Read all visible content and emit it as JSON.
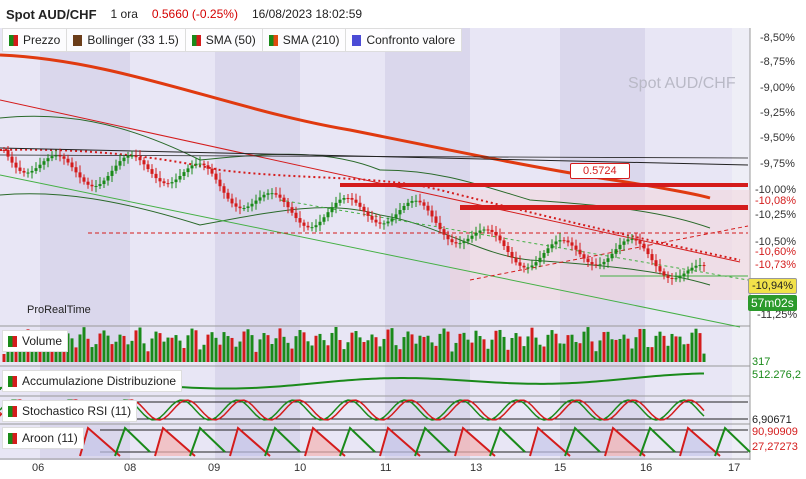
{
  "header": {
    "instrument": "Spot AUD/CHF",
    "timeframe": "1 ora",
    "price": "0.5660",
    "change": "(-0.25%)",
    "datetime": "16/08/2023 18:02:59"
  },
  "legend": [
    {
      "label": "Prezzo",
      "color": "#1a8a1a"
    },
    {
      "label": "Bollinger (33 1.5)",
      "color": "#6b3d1a"
    },
    {
      "label": "SMA (50)",
      "color": "#d41c1c"
    },
    {
      "label": "SMA (210)",
      "color": "#e04a10"
    },
    {
      "label": "Confronto valore",
      "color": "#4b4bd6"
    }
  ],
  "watermark": "Spot AUD/CHF",
  "brand": "ProRealTime",
  "price_axis": {
    "labels": [
      "-8,50%",
      "-8,75%",
      "-9,00%",
      "-9,25%",
      "-9,50%",
      "-9,75%",
      "-10,00%",
      "-10,25%",
      "-10,50%",
      "-10,75%",
      "-11,00%",
      "-11,25%"
    ],
    "tags": {
      "t_1008": "-10,08%",
      "t_1060": "-10,60%",
      "t_1073": "-10,73%",
      "t_1094": "-10,94%",
      "countdown": "57m02s",
      "price_box": "0.5724"
    }
  },
  "panels": {
    "volume": {
      "label": "Volume",
      "value": "317"
    },
    "ad": {
      "label": "Accumulazione Distribuzione",
      "value": "512.276,2"
    },
    "rsi": {
      "label": "Stochastico RSI (11)",
      "value": "6,90671"
    },
    "aroon": {
      "label": "Aroon (11)",
      "value_up": "90,90909",
      "value_down": "27,27273"
    }
  },
  "x_axis": [
    "06",
    "08",
    "09",
    "10",
    "11",
    "13",
    "15",
    "16",
    "17"
  ],
  "colors": {
    "up": "#1a8a1a",
    "down": "#d41c1c",
    "bg_band": "#e6e3f4",
    "bg_band_dark": "#d6d3ea"
  }
}
